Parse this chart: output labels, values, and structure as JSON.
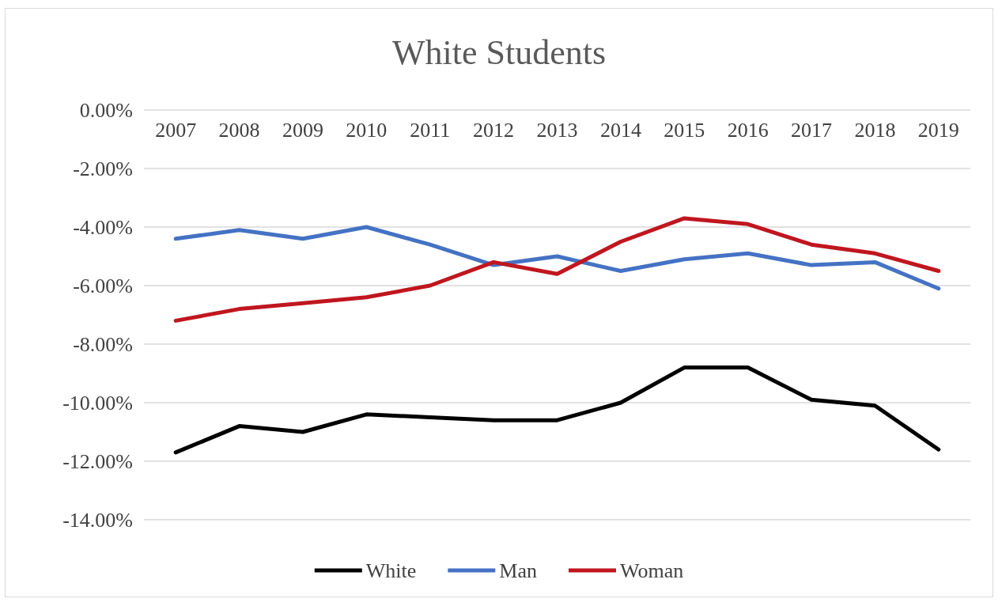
{
  "chart_data": {
    "type": "line",
    "title": "White Students",
    "categories": [
      "2007",
      "2008",
      "2009",
      "2010",
      "2011",
      "2012",
      "2013",
      "2014",
      "2015",
      "2016",
      "2017",
      "2018",
      "2019"
    ],
    "series": [
      {
        "name": "White",
        "color": "#000000",
        "values": [
          -11.7,
          -10.8,
          -11.0,
          -10.4,
          -10.5,
          -10.6,
          -10.6,
          -10.0,
          -8.8,
          -8.8,
          -9.9,
          -10.1,
          -11.6
        ]
      },
      {
        "name": "Man",
        "color": "#4472c4",
        "values": [
          -4.4,
          -4.1,
          -4.4,
          -4.0,
          -4.6,
          -5.3,
          -5.0,
          -5.5,
          -5.1,
          -4.9,
          -5.3,
          -5.2,
          -6.1
        ]
      },
      {
        "name": "Woman",
        "color": "#c0161f",
        "values": [
          -7.2,
          -6.8,
          -6.6,
          -6.4,
          -6.0,
          -5.2,
          -5.6,
          -4.5,
          -3.7,
          -3.9,
          -4.6,
          -4.9,
          -5.5
        ]
      }
    ],
    "ylim": [
      -14,
      0
    ],
    "yticks": [
      {
        "value": -14,
        "label": "-14.00%"
      },
      {
        "value": -12,
        "label": "-12.00%"
      },
      {
        "value": -10,
        "label": "-10.00%"
      },
      {
        "value": -8,
        "label": "-8.00%"
      },
      {
        "value": -6,
        "label": "-6.00%"
      },
      {
        "value": -4,
        "label": "-4.00%"
      },
      {
        "value": -2,
        "label": "-2.00%"
      },
      {
        "value": 0,
        "label": "0.00%"
      }
    ],
    "grid": "y",
    "legend": "bottom",
    "marker": "none",
    "line_style": "solid"
  }
}
